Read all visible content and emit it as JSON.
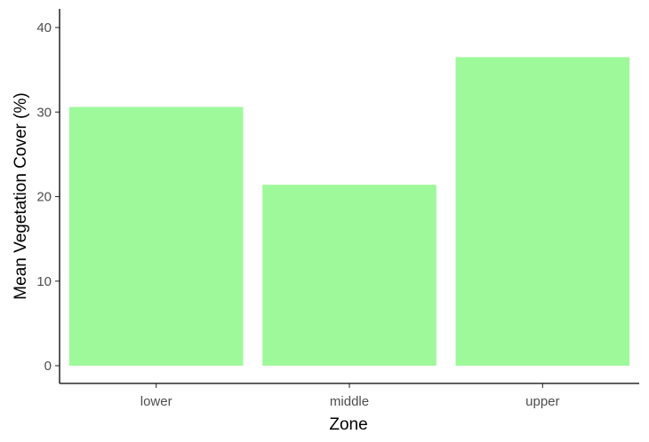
{
  "chart_data": {
    "type": "bar",
    "categories": [
      "lower",
      "middle",
      "upper"
    ],
    "values": [
      30.6,
      21.4,
      36.5
    ],
    "title": "",
    "xlabel": "Zone",
    "ylabel": "Mean Vegetation Cover (%)",
    "ylim": [
      0,
      42
    ],
    "yticks": [
      0,
      10,
      20,
      30,
      40
    ],
    "grid": false,
    "bar_color": "#9ef99a"
  }
}
